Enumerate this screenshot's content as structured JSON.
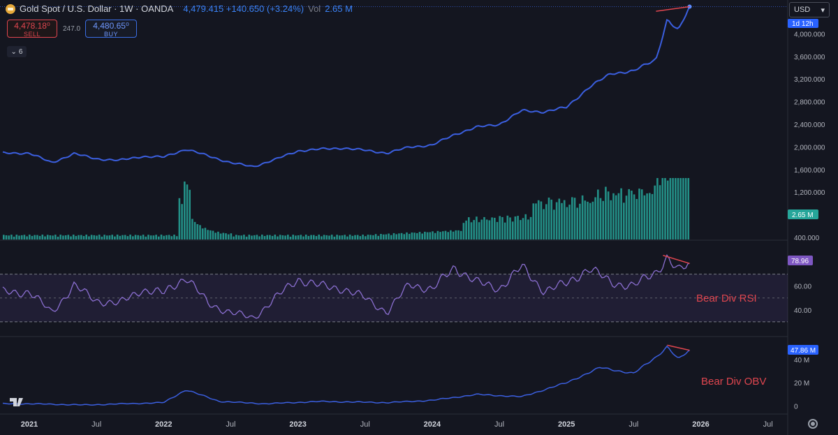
{
  "header": {
    "symbol": "Gold Spot / U.S. Dollar · 1W · OANDA",
    "price": "4,479.415 +140.650 (+3.24%)",
    "vol_label": "Vol",
    "vol_value": "2.65 M"
  },
  "trade": {
    "sell_price": "4,478.18⁰",
    "sell_label": "SELL",
    "spread": "247.0",
    "buy_price": "4,480.65⁰",
    "buy_label": "BUY"
  },
  "collapse_label": "6",
  "currency": "USD",
  "icons": [
    "gold-logo-icon",
    "chevron-down-icon",
    "settings-gear-icon",
    "tradingview-logo-icon"
  ],
  "colors": {
    "background": "#141620",
    "price_line": "#3b5fe0",
    "up": "#26a69a",
    "down": "#ef5350",
    "rsi": "#8b6fd1",
    "divergence": "#e0464f"
  },
  "chart_data": [
    {
      "type": "line",
      "name": "price",
      "x": [
        "2021-01",
        "2021-03",
        "2021-05",
        "2021-07",
        "2021-09",
        "2021-11",
        "2022-01",
        "2022-03",
        "2022-05",
        "2022-07",
        "2022-09",
        "2022-11",
        "2023-01",
        "2023-03",
        "2023-05",
        "2023-07",
        "2023-09",
        "2023-11",
        "2024-01",
        "2024-03",
        "2024-05",
        "2024-07",
        "2024-09",
        "2024-11",
        "2025-01",
        "2025-03",
        "2025-05",
        "2025-07",
        "2025-09",
        "2025-10",
        "2025-11",
        "2025-12"
      ],
      "y": [
        1890,
        1720,
        1880,
        1790,
        1760,
        1830,
        1820,
        1960,
        1840,
        1720,
        1650,
        1780,
        1930,
        1960,
        1980,
        1940,
        1890,
        2000,
        2030,
        2220,
        2350,
        2400,
        2640,
        2620,
        2700,
        3050,
        3300,
        3340,
        3550,
        4250,
        4050,
        4479
      ],
      "ylim": [
        400,
        4350
      ],
      "yticks": [
        "400.000",
        "1,200.000",
        "1,600.000",
        "2,000.000",
        "2,400.000",
        "2,800.000",
        "3,200.000",
        "3,600.000",
        "4,000.000"
      ],
      "last_label": "1d 12h",
      "divergence_note": ""
    },
    {
      "type": "bar",
      "name": "volume",
      "last_label": "2.65 M"
    },
    {
      "type": "line",
      "name": "RSI",
      "x": [
        "2021-01",
        "2021-03",
        "2021-05",
        "2021-07",
        "2021-09",
        "2021-11",
        "2022-01",
        "2022-03",
        "2022-05",
        "2022-07",
        "2022-09",
        "2022-11",
        "2023-01",
        "2023-03",
        "2023-05",
        "2023-07",
        "2023-09",
        "2023-11",
        "2024-01",
        "2024-03",
        "2024-05",
        "2024-07",
        "2024-09",
        "2024-11",
        "2025-01",
        "2025-03",
        "2025-05",
        "2025-07",
        "2025-09",
        "2025-10",
        "2025-11",
        "2025-12"
      ],
      "y": [
        55,
        38,
        60,
        48,
        45,
        57,
        54,
        68,
        45,
        38,
        33,
        50,
        66,
        60,
        58,
        50,
        38,
        62,
        57,
        76,
        63,
        58,
        76,
        56,
        62,
        75,
        63,
        60,
        72,
        84,
        72,
        79
      ],
      "ylim": [
        20,
        95
      ],
      "yticks": [
        "40.00",
        "60.00"
      ],
      "band": [
        30,
        70
      ],
      "last_label": "78.96",
      "annotation": "Bear Div RSI"
    },
    {
      "type": "line",
      "name": "OBV",
      "x": [
        "2021-01",
        "2021-06",
        "2022-01",
        "2022-03",
        "2022-06",
        "2022-10",
        "2023-03",
        "2023-09",
        "2024-01",
        "2024-05",
        "2024-09",
        "2025-01",
        "2025-04",
        "2025-07",
        "2025-09",
        "2025-10",
        "2025-11",
        "2025-12"
      ],
      "y": [
        2,
        1,
        3,
        14,
        4,
        2,
        4,
        3,
        5,
        10,
        8,
        20,
        33,
        28,
        42,
        51,
        40,
        47.86
      ],
      "ylim": [
        -5,
        56
      ],
      "yticks": [
        "0",
        "20 M",
        "40 M"
      ],
      "last_label": "47.86 M",
      "annotation": "Bear Div OBV"
    }
  ],
  "x_axis": [
    "2021",
    "Jul",
    "2022",
    "Jul",
    "2023",
    "Jul",
    "2024",
    "Jul",
    "2025",
    "Jul",
    "2026",
    "Jul"
  ]
}
